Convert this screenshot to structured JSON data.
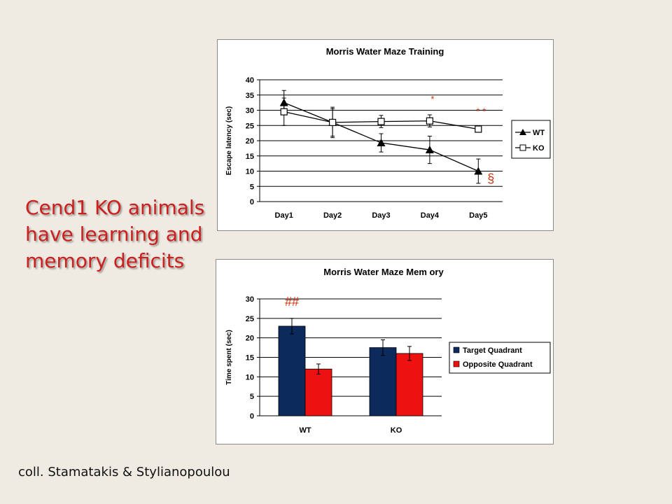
{
  "slide": {
    "headline_lines": [
      "Cend1 KO animals",
      "have learning and",
      "memory deficits"
    ],
    "credit": "coll. Stamatakis & Stylianopoulou"
  },
  "colors": {
    "headline": "#cc1f1f",
    "target": "#0d2a5c",
    "opposite": "#ee1111",
    "annotation": "#cc3311"
  },
  "chart_data": [
    {
      "type": "line",
      "title": "Morris Water Maze Training",
      "xlabel": "",
      "ylabel": "Escape latency (sec)",
      "categories": [
        "Day1",
        "Day2",
        "Day3",
        "Day4",
        "Day5"
      ],
      "ylim": [
        0,
        40
      ],
      "yticks": [
        0,
        5,
        10,
        15,
        20,
        25,
        30,
        35,
        40
      ],
      "grid": true,
      "legend": "right",
      "series": [
        {
          "name": "WT",
          "marker": "filled-triangle",
          "values": [
            32.5,
            26,
            19.3,
            17,
            10
          ],
          "errors": [
            4,
            5,
            3,
            4.5,
            4
          ]
        },
        {
          "name": "KO",
          "marker": "open-square",
          "values": [
            29.5,
            26,
            26.3,
            26.5,
            23.8
          ],
          "errors": [
            4.5,
            4.5,
            2,
            2,
            1
          ]
        }
      ],
      "annotations": [
        {
          "text": "*",
          "category": "Day4",
          "y": 34
        },
        {
          "text": "* *",
          "category": "Day5",
          "y": 30
        },
        {
          "text": "§",
          "category": "Day5",
          "y": 8
        }
      ]
    },
    {
      "type": "bar",
      "title": "Morris Water Maze Mem ory",
      "xlabel": "",
      "ylabel": "Time spent (sec)",
      "categories": [
        "WT",
        "KO"
      ],
      "ylim": [
        0,
        30
      ],
      "yticks": [
        0,
        5,
        10,
        15,
        20,
        25,
        30
      ],
      "grid": true,
      "legend": "right",
      "series": [
        {
          "name": "Target Quadrant",
          "values": [
            23,
            17.5
          ],
          "errors": [
            2,
            2
          ]
        },
        {
          "name": "Opposite Quadrant",
          "values": [
            12,
            16
          ],
          "errors": [
            1.3,
            1.8
          ]
        }
      ],
      "annotations": [
        {
          "text": "##",
          "category": "WT",
          "series": 0,
          "y": 28.2
        }
      ]
    }
  ]
}
